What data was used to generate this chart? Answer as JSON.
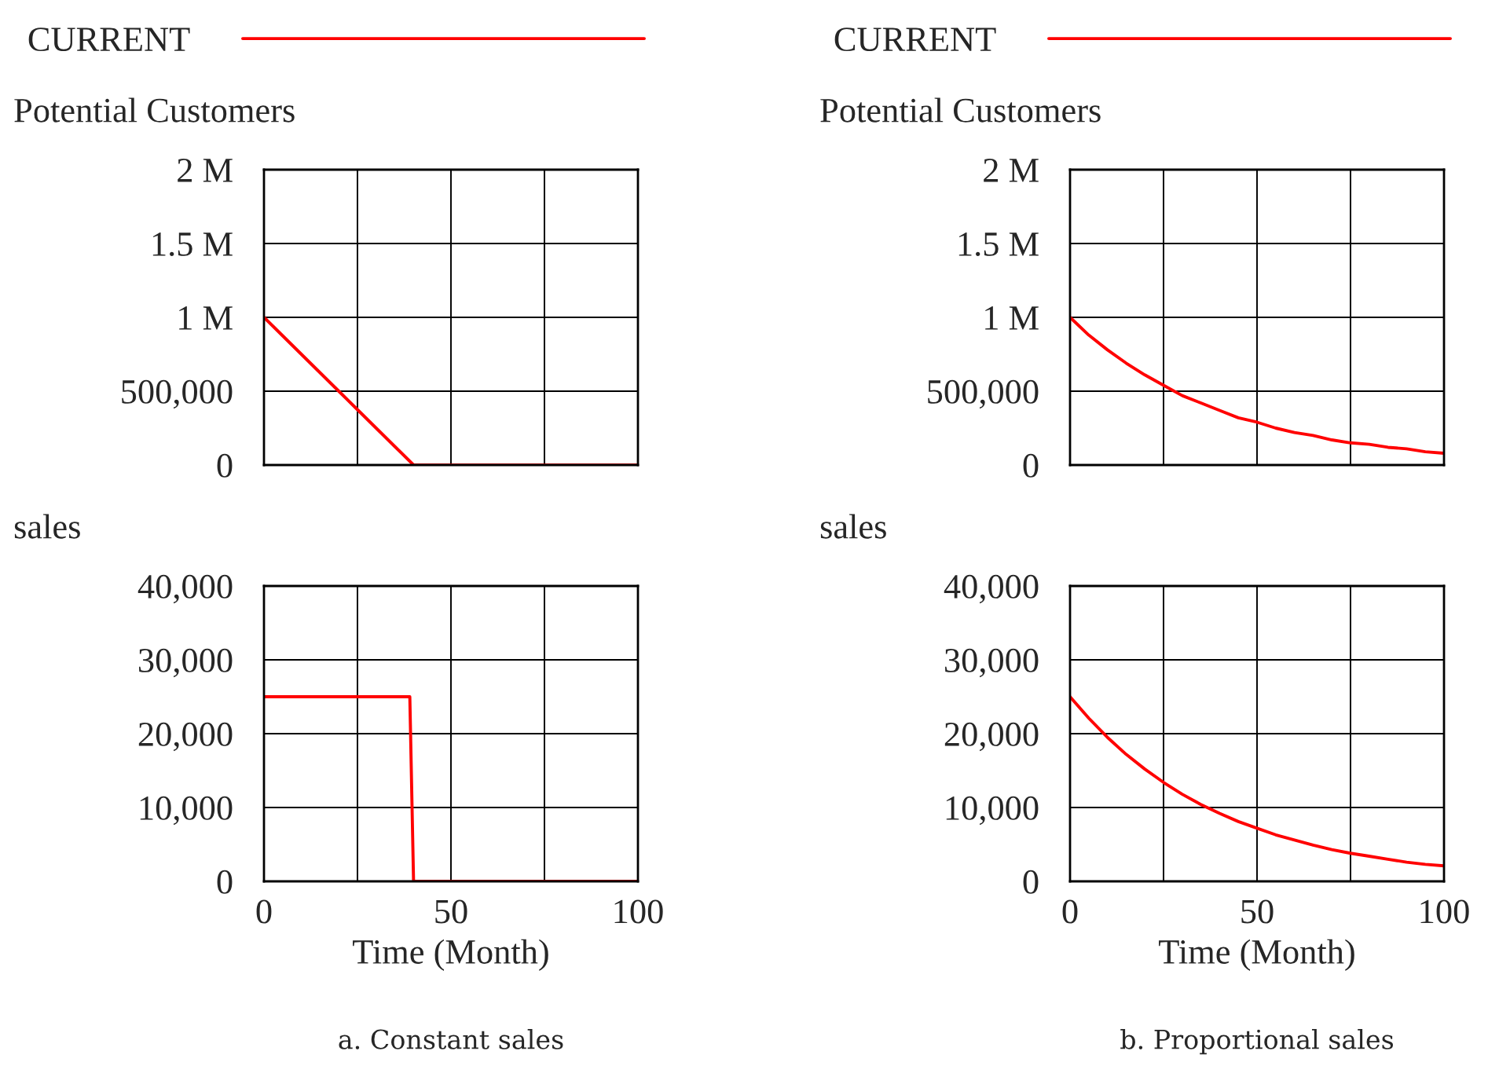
{
  "chart_data": [
    {
      "type": "line",
      "ylabel": "Potential Customers",
      "x": [
        0,
        5,
        10,
        15,
        20,
        25,
        30,
        35,
        40,
        100
      ],
      "series": [
        {
          "name": "CURRENT",
          "color": "#ff0000",
          "values": [
            1000000,
            875000,
            750000,
            625000,
            500000,
            375000,
            250000,
            125000,
            0,
            0
          ]
        }
      ],
      "xlim": [
        0,
        100
      ],
      "xticks": [
        0,
        {
          "value": 25,
          "label": null
        },
        {
          "value": 50,
          "label": null
        },
        {
          "value": 75,
          "label": null
        },
        100
      ],
      "ylim": [
        0,
        2000000
      ],
      "yticks": [
        0,
        {
          "value": 500000,
          "label": "500,000"
        },
        {
          "value": 1000000,
          "label": "1 M"
        },
        {
          "value": 1500000,
          "label": "1.5 M"
        },
        {
          "value": 2000000,
          "label": "2 M"
        }
      ],
      "tick_labels": "y",
      "grid": true,
      "legend": "top"
    },
    {
      "type": "line",
      "ylabel": "sales",
      "xlabel": "Time (Month)",
      "x": [
        0,
        39,
        40,
        100
      ],
      "series": [
        {
          "color": "#ff0000",
          "values": [
            25000,
            25000,
            0,
            0
          ]
        }
      ],
      "xlim": [
        0,
        100
      ],
      "xticks": [
        0,
        {
          "value": 25,
          "label": null
        },
        50,
        {
          "value": 75,
          "label": null
        },
        100
      ],
      "ylim": [
        0,
        40000
      ],
      "yticks": [
        0,
        {
          "value": 10000,
          "label": "10,000"
        },
        {
          "value": 20000,
          "label": "20,000"
        },
        {
          "value": 30000,
          "label": "30,000"
        },
        {
          "value": 40000,
          "label": "40,000"
        }
      ],
      "grid": true,
      "annotations": [
        "a. Constant sales"
      ]
    },
    {
      "type": "line",
      "ylabel": "Potential Customers",
      "x": [
        0,
        5,
        10,
        15,
        20,
        25,
        30,
        35,
        40,
        45,
        50,
        55,
        60,
        65,
        70,
        75,
        80,
        85,
        90,
        95,
        100
      ],
      "series": [
        {
          "name": "CURRENT",
          "color": "#ff0000",
          "values": [
            1000000,
            880000,
            780000,
            690000,
            610000,
            540000,
            470000,
            420000,
            370000,
            320000,
            290000,
            250000,
            220000,
            200000,
            170000,
            150000,
            140000,
            120000,
            110000,
            90000,
            80000
          ]
        }
      ],
      "xlim": [
        0,
        100
      ],
      "xticks": [
        0,
        {
          "value": 25,
          "label": null
        },
        {
          "value": 50,
          "label": null
        },
        {
          "value": 75,
          "label": null
        },
        100
      ],
      "ylim": [
        0,
        2000000
      ],
      "yticks": [
        0,
        {
          "value": 500000,
          "label": "500,000"
        },
        {
          "value": 1000000,
          "label": "1 M"
        },
        {
          "value": 1500000,
          "label": "1.5 M"
        },
        {
          "value": 2000000,
          "label": "2 M"
        }
      ],
      "tick_labels": "y",
      "grid": true,
      "legend": "top"
    },
    {
      "type": "line",
      "ylabel": "sales",
      "xlabel": "Time (Month)",
      "x": [
        0,
        5,
        10,
        15,
        20,
        25,
        30,
        35,
        40,
        45,
        50,
        55,
        60,
        65,
        70,
        75,
        80,
        85,
        90,
        95,
        100
      ],
      "series": [
        {
          "color": "#ff0000",
          "values": [
            25000,
            22100,
            19500,
            17200,
            15200,
            13400,
            11800,
            10400,
            9200,
            8100,
            7200,
            6300,
            5600,
            4900,
            4300,
            3800,
            3400,
            3000,
            2600,
            2300,
            2100
          ]
        }
      ],
      "xlim": [
        0,
        100
      ],
      "xticks": [
        0,
        {
          "value": 25,
          "label": null
        },
        50,
        {
          "value": 75,
          "label": null
        },
        100
      ],
      "ylim": [
        0,
        40000
      ],
      "yticks": [
        0,
        {
          "value": 10000,
          "label": "10,000"
        },
        {
          "value": 20000,
          "label": "20,000"
        },
        {
          "value": 30000,
          "label": "30,000"
        },
        {
          "value": 40000,
          "label": "40,000"
        }
      ],
      "grid": true,
      "annotations": [
        "b. Proportional sales"
      ]
    }
  ]
}
